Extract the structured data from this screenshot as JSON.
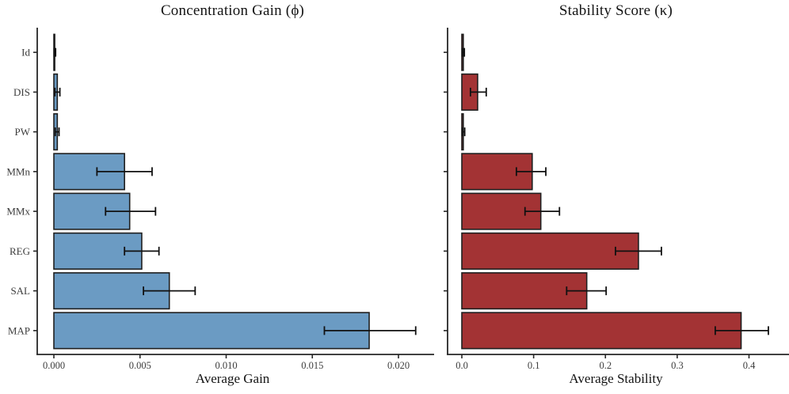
{
  "figure": {
    "background": "#ffffff",
    "title_color": "#141414",
    "label_color": "#3d3d3d",
    "axis_color": "#262626"
  },
  "chart_data": [
    {
      "type": "bar",
      "orientation": "horizontal",
      "title": "Concentration Gain (ϕ)",
      "xlabel": "Average Gain",
      "grid": false,
      "legend": "none",
      "categories": [
        "Id",
        "DIS",
        "PW",
        "MMn",
        "MMx",
        "REG",
        "SAL",
        "MAP"
      ],
      "values": [
        5e-05,
        0.0002,
        0.0002,
        0.0041,
        0.0044,
        0.0051,
        0.0067,
        0.0183
      ],
      "error_low": [
        2e-05,
        6e-05,
        8e-05,
        0.0025,
        0.003,
        0.0041,
        0.0052,
        0.0157
      ],
      "error_high": [
        0.0001,
        0.00035,
        0.0003,
        0.0057,
        0.0059,
        0.0061,
        0.0082,
        0.021
      ],
      "xlim": [
        0,
        0.0217
      ],
      "xticks": [
        0,
        0.005,
        0.01,
        0.015,
        0.02
      ],
      "xtick_labels": [
        "0.000",
        "0.005",
        "0.010",
        "0.015",
        "0.020"
      ],
      "bar_fill": "#6B9BC3",
      "bar_stroke": "#1f1f1f",
      "show_category_labels": true
    },
    {
      "type": "bar",
      "orientation": "horizontal",
      "title": "Stability Score (κ)",
      "xlabel": "Average Stability",
      "grid": false,
      "legend": "none",
      "categories": [
        "Id",
        "DIS",
        "PW",
        "MMn",
        "MMx",
        "REG",
        "SAL",
        "MAP"
      ],
      "values": [
        0.002,
        0.022,
        0.002,
        0.098,
        0.11,
        0.246,
        0.174,
        0.389
      ],
      "error_low": [
        0.0008,
        0.012,
        0.0005,
        0.076,
        0.088,
        0.214,
        0.146,
        0.353
      ],
      "error_high": [
        0.0035,
        0.034,
        0.004,
        0.117,
        0.136,
        0.278,
        0.201,
        0.427
      ],
      "xlim": [
        0,
        0.445
      ],
      "xticks": [
        0,
        0.1,
        0.2,
        0.3,
        0.4
      ],
      "xtick_labels": [
        "0.0",
        "0.1",
        "0.2",
        "0.3",
        "0.4"
      ],
      "bar_fill": "#A33334",
      "bar_stroke": "#1f1f1f",
      "show_category_labels": false
    }
  ]
}
